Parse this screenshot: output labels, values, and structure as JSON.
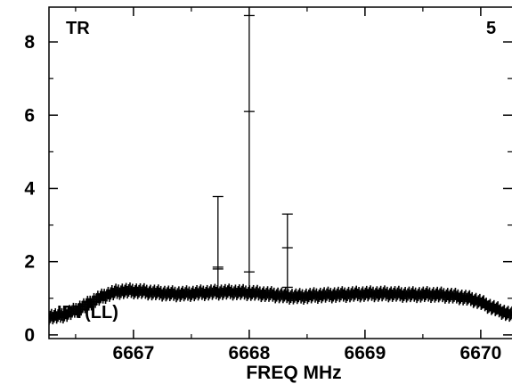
{
  "chart_data": {
    "type": "line",
    "title": "",
    "xlabel": "FREQ MHz",
    "ylabel": "",
    "xlim": [
      6666.27,
      6670.27
    ],
    "ylim": [
      -0.1,
      8.95
    ],
    "x_ticks": [
      6667,
      6668,
      6669,
      6670
    ],
    "y_ticks": [
      0,
      2,
      4,
      6,
      8
    ],
    "grid": false,
    "annotations": {
      "top_left": "TR",
      "top_right": "5",
      "bottom_left": "IPT(LL)"
    },
    "series": [
      {
        "name": "",
        "marker": "plus",
        "x": [
          6666.27,
          6666.4,
          6666.55,
          6666.7,
          6666.85,
          6667.0,
          6667.2,
          6667.4,
          6667.6,
          6667.8,
          6668.0,
          6668.2,
          6668.4,
          6668.6,
          6668.8,
          6669.0,
          6669.2,
          6669.4,
          6669.6,
          6669.8,
          6669.95,
          6670.1,
          6670.27
        ],
        "values": [
          0.5,
          0.55,
          0.75,
          1.0,
          1.17,
          1.2,
          1.15,
          1.12,
          1.15,
          1.17,
          1.15,
          1.1,
          1.05,
          1.08,
          1.1,
          1.12,
          1.12,
          1.1,
          1.1,
          1.05,
          0.95,
          0.75,
          0.55
        ]
      },
      {
        "name": "",
        "type": "spikes",
        "points": [
          {
            "x": 6667.73,
            "y": 3.78,
            "ticks": [
              1.85,
              1.8
            ]
          },
          {
            "x": 6668.0,
            "y": 8.72,
            "ticks": [
              6.1,
              1.72
            ]
          },
          {
            "x": 6668.33,
            "y": 3.3,
            "ticks": [
              2.38,
              1.3
            ]
          }
        ]
      }
    ]
  }
}
